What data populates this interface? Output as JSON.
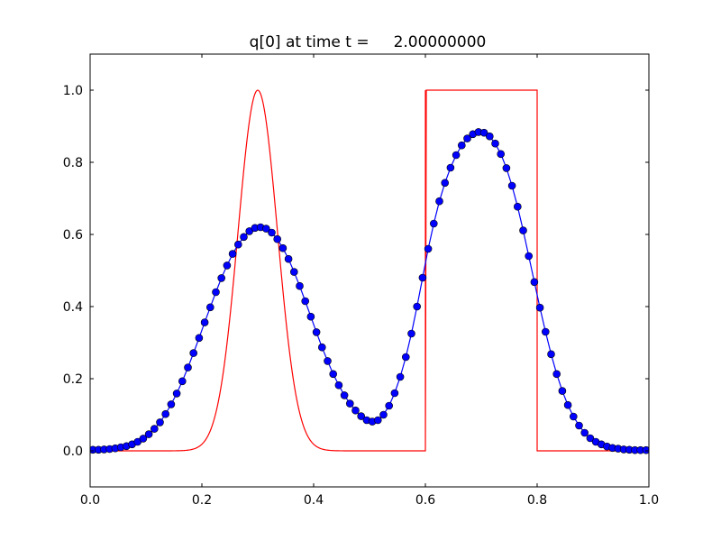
{
  "chart_data": {
    "type": "line",
    "title": "q[0] at time t =     2.00000000",
    "xlabel": "",
    "ylabel": "",
    "xlim": [
      0.0,
      1.0
    ],
    "ylim": [
      -0.1,
      1.1
    ],
    "xticks": [
      "0.0",
      "0.2",
      "0.4",
      "0.6",
      "0.8",
      "1.0"
    ],
    "yticks": [
      "0.0",
      "0.2",
      "0.4",
      "0.6",
      "0.8",
      "1.0"
    ],
    "grid": false,
    "legend": "none",
    "series": [
      {
        "kind": "exact-line",
        "color": "#ff0000",
        "components": [
          {
            "shape": "gaussian",
            "center": 0.3,
            "width_param": 0.05,
            "amplitude": 1.0
          },
          {
            "shape": "square",
            "from": 0.6,
            "to": 0.8,
            "amplitude": 1.0
          }
        ]
      },
      {
        "kind": "numerical-line-markers",
        "color": "#0000ff",
        "marker": "circle",
        "x": [
          0.005,
          0.015,
          0.025,
          0.035,
          0.045,
          0.055,
          0.065,
          0.075,
          0.085,
          0.095,
          0.105,
          0.115,
          0.125,
          0.135,
          0.145,
          0.155,
          0.165,
          0.175,
          0.185,
          0.195,
          0.205,
          0.215,
          0.225,
          0.235,
          0.245,
          0.255,
          0.265,
          0.275,
          0.285,
          0.295,
          0.305,
          0.315,
          0.325,
          0.335,
          0.345,
          0.355,
          0.365,
          0.375,
          0.385,
          0.395,
          0.405,
          0.415,
          0.425,
          0.435,
          0.445,
          0.455,
          0.465,
          0.475,
          0.485,
          0.495,
          0.505,
          0.515,
          0.525,
          0.535,
          0.545,
          0.555,
          0.565,
          0.575,
          0.585,
          0.595,
          0.605,
          0.615,
          0.625,
          0.635,
          0.645,
          0.655,
          0.665,
          0.675,
          0.685,
          0.695,
          0.705,
          0.715,
          0.725,
          0.735,
          0.745,
          0.755,
          0.765,
          0.775,
          0.785,
          0.795,
          0.805,
          0.815,
          0.825,
          0.835,
          0.845,
          0.855,
          0.865,
          0.875,
          0.885,
          0.895,
          0.905,
          0.915,
          0.925,
          0.935,
          0.945,
          0.955,
          0.965,
          0.975,
          0.985,
          0.995
        ],
        "y": [
          0.003,
          0.003,
          0.004,
          0.005,
          0.007,
          0.01,
          0.013,
          0.018,
          0.025,
          0.034,
          0.046,
          0.061,
          0.079,
          0.102,
          0.129,
          0.159,
          0.193,
          0.231,
          0.271,
          0.313,
          0.356,
          0.398,
          0.44,
          0.479,
          0.514,
          0.546,
          0.572,
          0.593,
          0.609,
          0.618,
          0.62,
          0.616,
          0.605,
          0.587,
          0.562,
          0.532,
          0.496,
          0.457,
          0.415,
          0.372,
          0.329,
          0.287,
          0.249,
          0.213,
          0.182,
          0.154,
          0.131,
          0.112,
          0.096,
          0.085,
          0.081,
          0.085,
          0.1,
          0.125,
          0.16,
          0.205,
          0.26,
          0.325,
          0.4,
          0.48,
          0.56,
          0.63,
          0.692,
          0.743,
          0.785,
          0.82,
          0.847,
          0.866,
          0.878,
          0.884,
          0.882,
          0.872,
          0.852,
          0.823,
          0.784,
          0.735,
          0.677,
          0.611,
          0.54,
          0.468,
          0.397,
          0.33,
          0.268,
          0.213,
          0.166,
          0.127,
          0.095,
          0.07,
          0.05,
          0.035,
          0.025,
          0.018,
          0.012,
          0.008,
          0.006,
          0.004,
          0.003,
          0.002,
          0.002,
          0.002
        ]
      }
    ]
  }
}
